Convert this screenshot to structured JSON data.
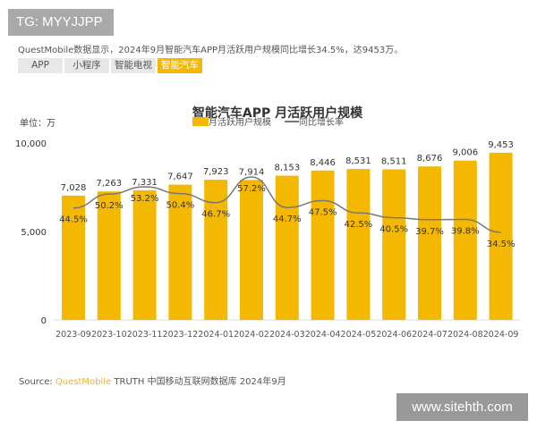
{
  "overlay_tag": "TG: MYYJJPP",
  "description": "QuestMobile数据显示，2024年9月智能汽车APP月活跃用户规模同比增长34.5%，达9453万。",
  "tabs": [
    {
      "label": "APP",
      "active": false
    },
    {
      "label": "小程序",
      "active": false
    },
    {
      "label": "智能电视",
      "active": false
    },
    {
      "label": "智能汽车",
      "active": true
    }
  ],
  "source": {
    "prefix": "Source:",
    "brand": "QuestMobile",
    "rest": "TRUTH 中国移动互联网数据库 2024年9月"
  },
  "watermark": "www.sitehth.com",
  "colors": {
    "bar": "#f5b800",
    "line": "#777777",
    "accent": "#f5b800"
  },
  "chart_data": {
    "type": "bar+line",
    "title": "智能汽车APP 月活跃用户规模",
    "unit_label": "单位：万",
    "categories": [
      "2023-09",
      "2023-10",
      "2023-11",
      "2023-12",
      "2024-01",
      "2024-02",
      "2024-03",
      "2024-04",
      "2024-05",
      "2024-06",
      "2024-07",
      "2024-08",
      "2024-09"
    ],
    "ylim": [
      0,
      10000
    ],
    "yticks": [
      "0",
      "5,000",
      "10,000"
    ],
    "legend_position": "top-center",
    "grid": false,
    "series": [
      {
        "name": "月活跃用户规模",
        "kind": "bar",
        "values": [
          7028,
          7263,
          7331,
          7647,
          7923,
          7914,
          8153,
          8446,
          8531,
          8511,
          8676,
          9006,
          9453
        ],
        "labels": [
          "7,028",
          "7,263",
          "7,331",
          "7,647",
          "7,923",
          "7,914",
          "8,153",
          "8,446",
          "8,531",
          "8,511",
          "8,676",
          "9,006",
          "9,453"
        ]
      },
      {
        "name": "同比增长率",
        "kind": "line",
        "values": [
          44.5,
          50.2,
          53.2,
          50.4,
          46.7,
          57.2,
          44.7,
          47.5,
          42.5,
          40.5,
          39.7,
          39.8,
          34.5
        ],
        "labels": [
          "44.5%",
          "50.2%",
          "53.2%",
          "50.4%",
          "46.7%",
          "57.2%",
          "44.7%",
          "47.5%",
          "42.5%",
          "40.5%",
          "39.7%",
          "39.8%",
          "34.5%"
        ]
      }
    ]
  }
}
